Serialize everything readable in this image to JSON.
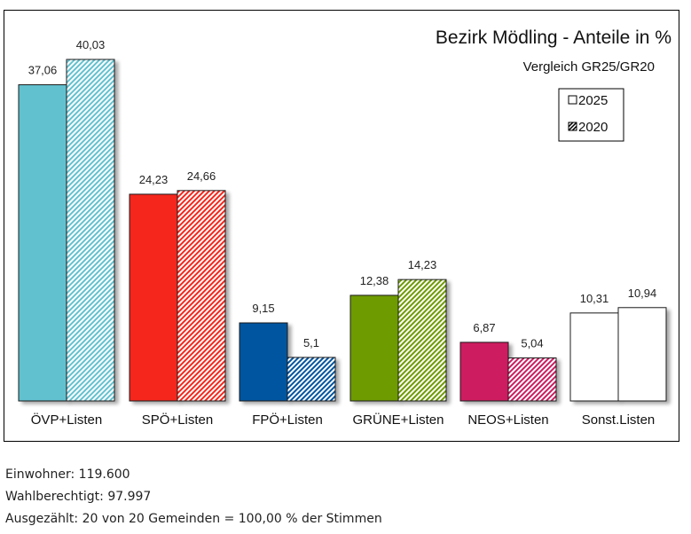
{
  "chart_data": {
    "type": "bar",
    "title": "Bezirk Mödling - Anteile in %",
    "subtitle": "Vergleich GR25/GR20",
    "xlabel": "",
    "ylabel": "",
    "ylim": [
      0,
      40.03
    ],
    "grid": false,
    "legend_position": "top-right",
    "categories": [
      "ÖVP+Listen",
      "SPÖ+Listen",
      "FPÖ+Listen",
      "GRÜNE+Listen",
      "NEOS+Listen",
      "Sonst.Listen"
    ],
    "colors": [
      "#62c1cf",
      "#f5281a",
      "#0054a0",
      "#6e9b00",
      "#cd1a5f",
      "#ffffff"
    ],
    "series": [
      {
        "name": "2025",
        "style": "solid",
        "values": [
          37.06,
          24.23,
          9.15,
          12.38,
          6.87,
          10.31
        ],
        "labels": [
          "37,06",
          "24,23",
          "9,15",
          "12,38",
          "6,87",
          "10,31"
        ]
      },
      {
        "name": "2020",
        "style": "hatched",
        "values": [
          40.03,
          24.66,
          5.1,
          14.23,
          5.04,
          10.94
        ],
        "labels": [
          "40,03",
          "24,66",
          "5,1",
          "14,23",
          "5,04",
          "10,94"
        ]
      }
    ]
  },
  "footer": {
    "einwohner": "Einwohner: 119.600",
    "wahlberechtigt": "Wahlberechtigt: 97.997",
    "ausgezaehlt": "Ausgezählt: 20 von 20 Gemeinden = 100,00 % der Stimmen"
  }
}
